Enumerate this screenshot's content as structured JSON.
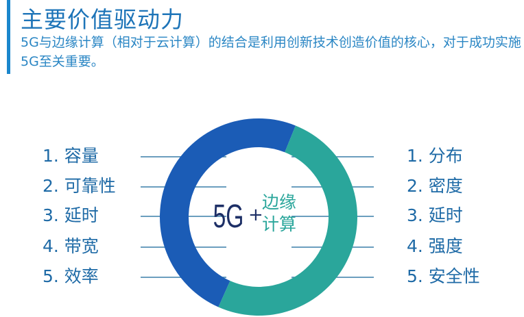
{
  "title": "主要价值驱动力",
  "description": "5G与边缘计算（相对于云计算）的结合是利用创新技术创造价值的核心，对于成功实施5G至关重要。",
  "center": {
    "main": "5G",
    "plus": "+",
    "line1": "边缘",
    "line2": "计算"
  },
  "left_items": [
    "1. 容量",
    "2. 可靠性",
    "3. 延时",
    "4. 带宽",
    "5. 效率"
  ],
  "right_items": [
    "1. 分布",
    "2. 密度",
    "3. 延时",
    "4. 强度",
    "5. 安全性"
  ],
  "colors": {
    "blue_segment": "#1b5cb6",
    "teal_segment": "#2aa69b",
    "text": "#1e6aa6",
    "accent_bar": "#1b86cc"
  }
}
